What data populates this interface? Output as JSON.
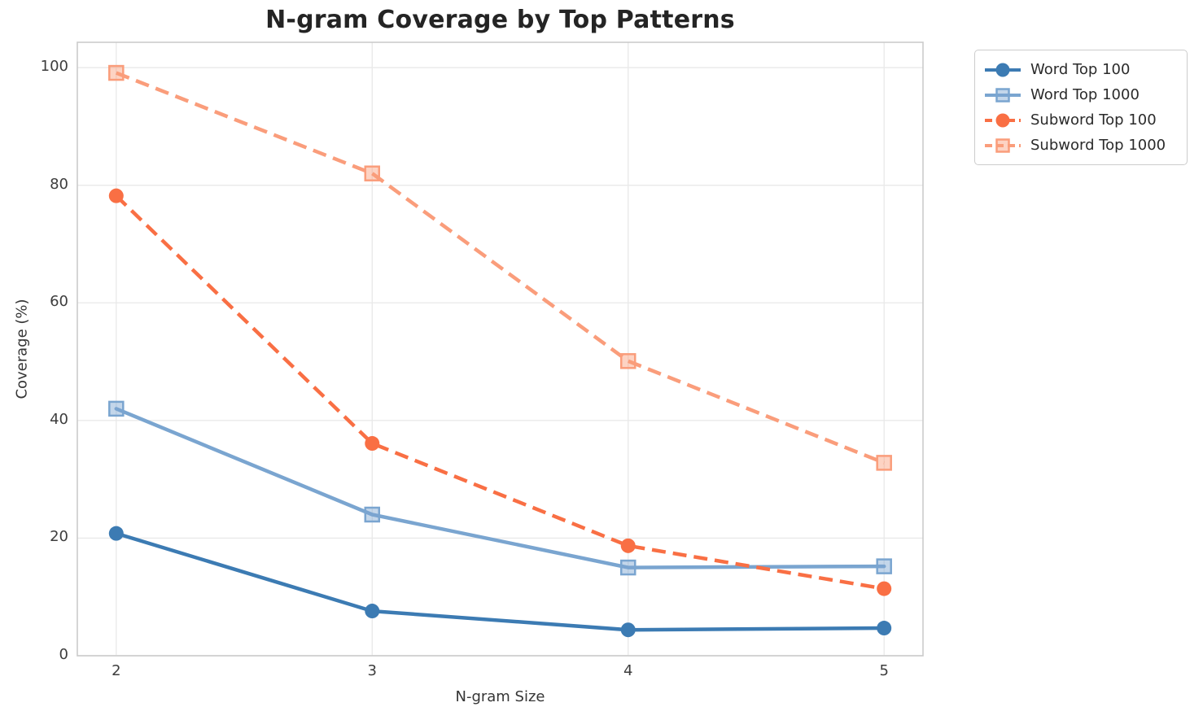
{
  "chart_data": {
    "type": "line",
    "title": "N-gram Coverage by Top Patterns",
    "xlabel": "N-gram Size",
    "ylabel": "Coverage (%)",
    "x": [
      2,
      3,
      4,
      5
    ],
    "xtick_labels": [
      "2",
      "3",
      "4",
      "5"
    ],
    "yticks": [
      0,
      20,
      40,
      60,
      80,
      100
    ],
    "xlim": [
      1.848,
      5.152
    ],
    "ylim": [
      0,
      104.3
    ],
    "grid": true,
    "legend_location": "outside-top-right",
    "series": [
      {
        "name": "Word Top 100",
        "values": [
          20.8,
          7.6,
          4.4,
          4.7
        ],
        "color": "#3c7bb3",
        "marker": "circle",
        "linestyle": "solid"
      },
      {
        "name": "Word Top 1000",
        "values": [
          42.0,
          24.0,
          15.0,
          15.2
        ],
        "color": "#7aa5d0",
        "marker": "square",
        "linestyle": "solid"
      },
      {
        "name": "Subword Top 100",
        "values": [
          78.2,
          36.1,
          18.7,
          11.4
        ],
        "color": "#f96f44",
        "marker": "circle",
        "linestyle": "dashed"
      },
      {
        "name": "Subword Top 1000",
        "values": [
          99.1,
          82.0,
          50.1,
          32.8
        ],
        "color": "#fa9d7b",
        "marker": "square",
        "linestyle": "dashed"
      }
    ]
  }
}
